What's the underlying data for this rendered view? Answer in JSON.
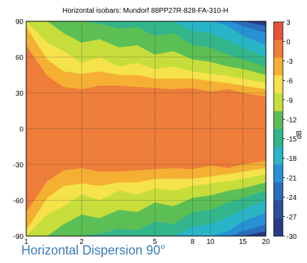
{
  "caption": "Horizontal Dispersion 90°",
  "chart_data": {
    "type": "heatmap",
    "title": "Horizontal isobars: Mundorf  88PP27R-828-FA-310-H",
    "xlabel": "",
    "ylabel": "",
    "x_scale": "log",
    "xlim": [
      1,
      20
    ],
    "ylim": [
      -90,
      90
    ],
    "x_ticks": [
      1,
      2,
      5,
      8,
      10,
      15,
      20
    ],
    "y_ticks": [
      90,
      60,
      30,
      0,
      -30,
      -60,
      -90
    ],
    "grid": true,
    "colorbar": {
      "label": "dB",
      "range": [
        -30,
        3
      ],
      "ticks": [
        3,
        0,
        -3,
        -6,
        -9,
        -12,
        -15,
        -18,
        -21,
        -24,
        -27,
        -30
      ],
      "colors": [
        "#e8523a",
        "#ee7d3a",
        "#f5b033",
        "#f6e24a",
        "#c7dd3c",
        "#5cbf55",
        "#33b58c",
        "#2ab4c8",
        "#2791d3",
        "#2a6dbb",
        "#2b4f9e",
        "#283b86"
      ]
    },
    "isobar_boundaries_deg": {
      "frequencies": [
        1,
        1.3,
        1.6,
        2,
        2.5,
        3.2,
        4,
        5,
        6.3,
        8,
        10,
        12.5,
        15,
        20
      ],
      "bands": [
        {
          "level": "above -3",
          "upper": [
            70,
            44,
            35,
            33,
            36,
            36,
            35,
            34,
            33,
            34,
            31,
            33,
            30,
            27
          ]
        },
        {
          "level": "above -6",
          "upper": [
            85,
            58,
            48,
            46,
            48,
            45,
            45,
            42,
            42,
            42,
            40,
            38,
            36,
            33
          ]
        },
        {
          "level": "above -9",
          "upper": [
            90,
            72,
            65,
            55,
            60,
            52,
            55,
            50,
            52,
            48,
            46,
            44,
            42,
            38
          ]
        },
        {
          "level": "above -12",
          "upper": [
            90,
            90,
            80,
            72,
            75,
            68,
            70,
            62,
            65,
            58,
            56,
            52,
            50,
            45
          ]
        },
        {
          "level": "above -15",
          "upper": [
            90,
            90,
            90,
            90,
            88,
            84,
            85,
            78,
            80,
            70,
            68,
            62,
            58,
            52
          ]
        },
        {
          "level": "above -18",
          "upper": [
            90,
            90,
            90,
            90,
            90,
            90,
            90,
            90,
            90,
            82,
            80,
            74,
            68,
            60
          ]
        },
        {
          "level": "above -21",
          "upper": [
            90,
            90,
            90,
            90,
            90,
            90,
            90,
            90,
            90,
            90,
            90,
            86,
            78,
            70
          ]
        },
        {
          "level": "above -24",
          "upper": [
            90,
            90,
            90,
            90,
            90,
            90,
            90,
            90,
            90,
            90,
            90,
            90,
            86,
            80
          ]
        },
        {
          "level": "above -27",
          "upper": [
            90,
            90,
            90,
            90,
            90,
            90,
            90,
            90,
            90,
            90,
            90,
            90,
            90,
            86
          ]
        }
      ],
      "symmetric": true
    }
  }
}
